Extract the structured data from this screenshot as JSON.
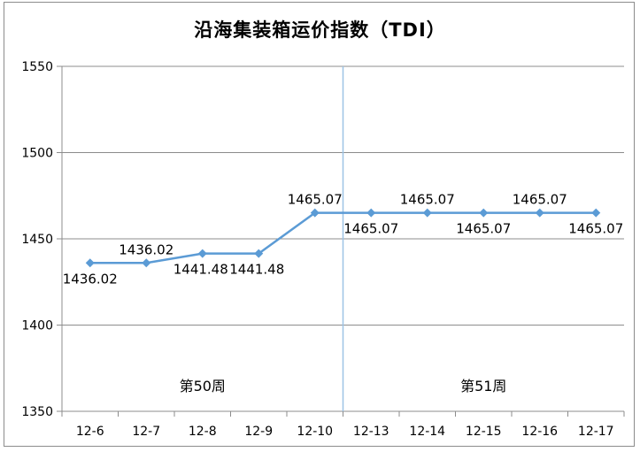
{
  "chart_data": {
    "type": "line",
    "title": "沿海集装箱运价指数（TDI）",
    "categories": [
      "12-6",
      "12-7",
      "12-8",
      "12-9",
      "12-10",
      "12-13",
      "12-14",
      "12-15",
      "12-16",
      "12-17"
    ],
    "series": [
      {
        "values": [
          1436.02,
          1436.02,
          1441.48,
          1441.48,
          1465.07,
          1465.07,
          1465.07,
          1465.07,
          1465.07,
          1465.07
        ],
        "labels": [
          "1436.02",
          "1436.02",
          "1441.48",
          "1441.48",
          "1465.07",
          "1465.07",
          "1465.07",
          "1465.07",
          "1465.07",
          "1465.07"
        ],
        "color": "#5b9bd5"
      }
    ],
    "ylim": [
      1350,
      1550
    ],
    "yticks": [
      "1350",
      "1400",
      "1450",
      "1500",
      "1550"
    ],
    "grid": true,
    "week_divider_after_index": 4,
    "annotations": [
      "第50周",
      "第51周"
    ]
  }
}
